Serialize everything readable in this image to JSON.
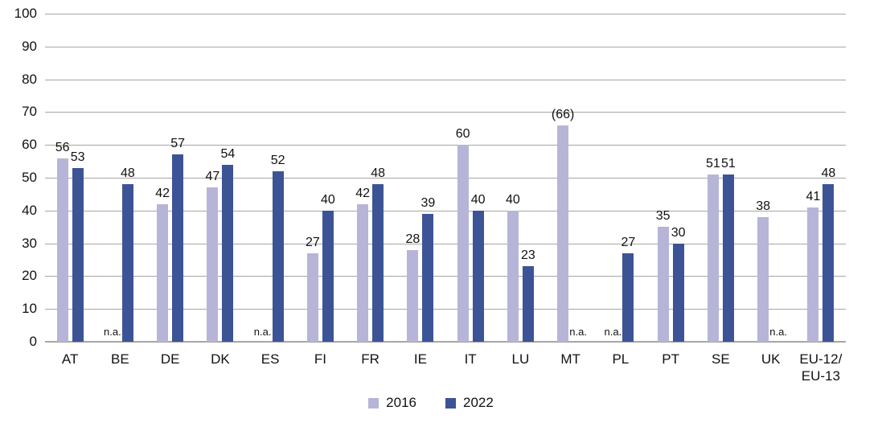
{
  "chart_data": {
    "type": "bar",
    "title": "",
    "xlabel": "",
    "ylabel": "",
    "categories": [
      "AT",
      "BE",
      "DE",
      "DK",
      "ES",
      "FI",
      "FR",
      "IE",
      "IT",
      "LU",
      "MT",
      "PL",
      "PT",
      "SE",
      "UK",
      "EU-12/\nEU-13"
    ],
    "series": [
      {
        "name": "2016",
        "color": "#b6b5d8",
        "values": [
          56,
          null,
          42,
          47,
          null,
          27,
          42,
          28,
          60,
          40,
          66,
          null,
          35,
          51,
          38,
          41
        ],
        "labels": [
          "56",
          "n.a.",
          "42",
          "47",
          "n.a.",
          "27",
          "42",
          "28",
          "60",
          "40",
          "(66)",
          "n.a.",
          "35",
          "51",
          "38",
          "41"
        ]
      },
      {
        "name": "2022",
        "color": "#3c5496",
        "values": [
          53,
          48,
          57,
          54,
          52,
          40,
          48,
          39,
          40,
          23,
          null,
          27,
          30,
          51,
          null,
          48
        ],
        "labels": [
          "53",
          "48",
          "57",
          "54",
          "52",
          "40",
          "48",
          "39",
          "40",
          "23",
          "n.a.",
          "27",
          "30",
          "51",
          "n.a.",
          "48"
        ]
      }
    ],
    "ylim": [
      0,
      100
    ],
    "ytick_step": 10,
    "grid": "horizontal",
    "gridline_color": "#a6a6a6",
    "na_text": "n.a.",
    "legend_position": "bottom"
  }
}
